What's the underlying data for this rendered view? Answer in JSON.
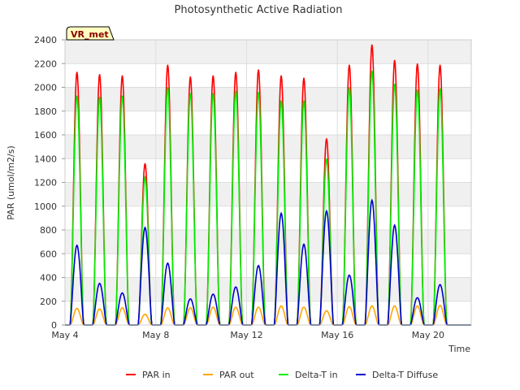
{
  "chart_data": {
    "type": "line",
    "title": "Photosynthetic Active Radiation",
    "xlabel": "Time",
    "ylabel": "PAR (umol/m2/s)",
    "ylim": [
      0,
      2400
    ],
    "xlim_days": [
      4,
      21.9
    ],
    "xlim_dates": [
      "May 4",
      "May 21 (late)"
    ],
    "y_ticks": [
      0,
      200,
      400,
      600,
      800,
      1000,
      1200,
      1400,
      1600,
      1800,
      2000,
      2200,
      2400
    ],
    "x_ticks": [
      {
        "day": 4,
        "label": "May 4"
      },
      {
        "day": 8,
        "label": "May 8"
      },
      {
        "day": 12,
        "label": "May 12"
      },
      {
        "day": 16,
        "label": "May 16"
      },
      {
        "day": 20,
        "label": "May 20"
      }
    ],
    "site_label": "VR_met",
    "grid": true,
    "legend_position": "bottom",
    "x": [
      "May 4",
      "May 5",
      "May 6",
      "May 7",
      "May 8",
      "May 9",
      "May 10",
      "May 11",
      "May 12",
      "May 13",
      "May 14",
      "May 15",
      "May 16",
      "May 17",
      "May 18",
      "May 19",
      "May 20",
      "May 21"
    ],
    "series": [
      {
        "name": "PAR in",
        "color": "#ff0000",
        "values": [
          2130,
          2110,
          2100,
          1360,
          2190,
          2090,
          2100,
          2130,
          2150,
          2100,
          2080,
          1570,
          2190,
          2360,
          2230,
          2200,
          2190,
          0
        ]
      },
      {
        "name": "PAR out",
        "color": "#ffa500",
        "values": [
          140,
          135,
          145,
          90,
          145,
          145,
          150,
          150,
          150,
          160,
          150,
          120,
          155,
          160,
          160,
          160,
          165,
          0
        ]
      },
      {
        "name": "Delta-T in",
        "color": "#00ee00",
        "values": [
          1930,
          1920,
          1930,
          1240,
          2000,
          1950,
          1950,
          1970,
          1960,
          1890,
          1890,
          1400,
          2000,
          2140,
          2030,
          1980,
          1990,
          0
        ]
      },
      {
        "name": "Delta-T Diffuse",
        "color": "#0000cc",
        "values": [
          670,
          350,
          270,
          820,
          520,
          220,
          260,
          320,
          500,
          940,
          680,
          960,
          420,
          1050,
          840,
          230,
          340,
          0
        ]
      }
    ]
  }
}
